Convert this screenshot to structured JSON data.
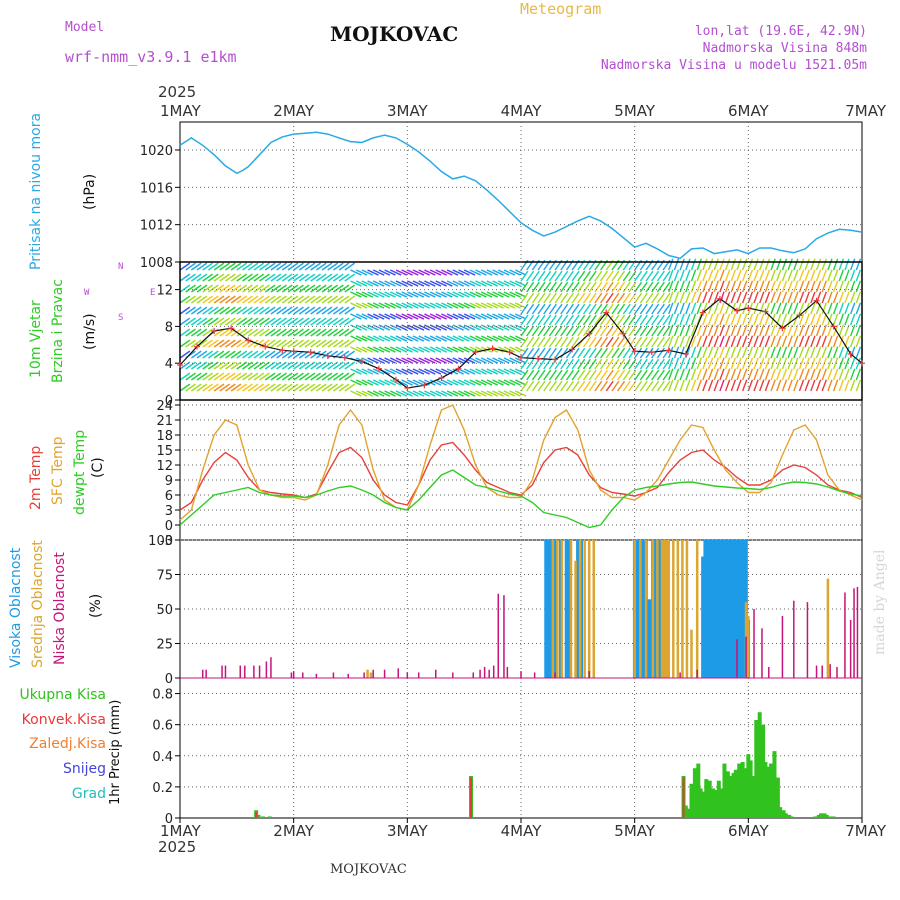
{
  "header": {
    "model_label": "Model",
    "model_value": "wrf-nmm_v3.9.1 e1km",
    "station": "MOJKOVAC",
    "product": "Meteogram",
    "lonlat": "lon,lat (19.6E, 42.9N)",
    "elevation": "Nadmorska Visina 848m",
    "model_elevation": "Nadmorska Visina u modelu 1521.05m"
  },
  "date_axis": {
    "year": "2025",
    "days": [
      "1MAY",
      "2MAY",
      "3MAY",
      "4MAY",
      "5MAY",
      "6MAY",
      "7MAY"
    ]
  },
  "footer": {
    "station": "MOJKOVAC",
    "credit": "made by Angel"
  },
  "panels": {
    "pressure": {
      "label": "Pritisak na nivou mora",
      "unit": "(hPa)"
    },
    "wind": {
      "label1": "10m Vjetar",
      "label2": "Brzina i Pravac",
      "unit": "(m/s)",
      "compass": {
        "w": "W",
        "e": "E",
        "n": "N",
        "s": "S"
      }
    },
    "temp": {
      "label1": "2m Temp",
      "label2": "SFC Temp",
      "label3": "dewpt Temp",
      "unit": "(C)"
    },
    "cloud": {
      "label1": "Visoka Oblacnost",
      "label2": "Srednja Oblacnost",
      "label3": "Niska Oblacnost",
      "unit": "(%)"
    },
    "precip": {
      "legend": [
        "Ukupna Kisa",
        "Konvek.Kisa",
        "Zaledj.Kisa",
        "Snijeg",
        "Grad"
      ],
      "unit": "1hr Precip (mm)"
    }
  },
  "colors": {
    "pressure": "#29a9e6",
    "temp2m": "#e8413a",
    "sfc": "#e4a22e",
    "dewpt": "#2ecc24",
    "high_cloud": "#1e9be6",
    "mid_cloud": "#dca531",
    "low_cloud": "#c4147a",
    "rain": "#31c21e",
    "conv": "#e83a3a",
    "frz": "#ef7f30",
    "snow": "#4444dd",
    "hail": "#22bbbb"
  },
  "chart_data": [
    {
      "type": "line",
      "name": "pressure",
      "x_unit": "days since 1MAY",
      "xlim": [
        0,
        6
      ],
      "ylim": [
        1008,
        1023
      ],
      "yticks": [
        1008,
        1012,
        1016,
        1020
      ],
      "grid": true,
      "x": [
        0,
        0.1,
        0.2,
        0.3,
        0.4,
        0.5,
        0.55,
        0.6,
        0.7,
        0.8,
        0.9,
        1.0,
        1.1,
        1.2,
        1.3,
        1.4,
        1.5,
        1.6,
        1.7,
        1.8,
        1.9,
        2.0,
        2.1,
        2.2,
        2.3,
        2.4,
        2.5,
        2.6,
        2.7,
        2.8,
        2.9,
        3.0,
        3.1,
        3.2,
        3.3,
        3.4,
        3.5,
        3.6,
        3.7,
        3.8,
        3.9,
        4.0,
        4.1,
        4.2,
        4.3,
        4.4,
        4.5,
        4.6,
        4.7,
        4.8,
        4.9,
        5.0,
        5.1,
        5.2,
        5.3,
        5.4,
        5.5,
        5.6,
        5.7,
        5.8,
        5.9,
        6.0
      ],
      "values": [
        1020.5,
        1021.3,
        1020.5,
        1019.5,
        1018.3,
        1017.5,
        1017.8,
        1018.2,
        1019.5,
        1020.8,
        1021.4,
        1021.7,
        1021.8,
        1021.9,
        1021.7,
        1021.3,
        1020.9,
        1020.8,
        1021.3,
        1021.6,
        1021.3,
        1020.6,
        1019.8,
        1018.8,
        1017.7,
        1016.9,
        1017.2,
        1016.7,
        1015.7,
        1014.6,
        1013.4,
        1012.2,
        1011.4,
        1010.8,
        1011.2,
        1011.8,
        1012.4,
        1012.9,
        1012.4,
        1011.6,
        1010.6,
        1009.6,
        1010.0,
        1009.4,
        1008.7,
        1008.4,
        1009.4,
        1009.5,
        1008.9,
        1009.1,
        1009.3,
        1008.9,
        1009.5,
        1009.5,
        1009.2,
        1009.0,
        1009.4,
        1010.5,
        1011.1,
        1011.5,
        1011.4,
        1011.2
      ]
    },
    {
      "type": "line",
      "name": "wind_speed",
      "x_unit": "days since 1MAY",
      "xlim": [
        0,
        6
      ],
      "ylim": [
        0,
        15
      ],
      "yticks": [
        0,
        4,
        8,
        12
      ],
      "grid": true,
      "x": [
        0,
        0.15,
        0.3,
        0.45,
        0.6,
        0.75,
        0.9,
        1.0,
        1.15,
        1.3,
        1.45,
        1.6,
        1.75,
        1.9,
        2.0,
        2.15,
        2.3,
        2.45,
        2.6,
        2.75,
        2.9,
        3.0,
        3.15,
        3.3,
        3.45,
        3.6,
        3.75,
        3.9,
        4.0,
        4.15,
        4.3,
        4.45,
        4.6,
        4.75,
        4.9,
        5.0,
        5.15,
        5.3,
        5.45,
        5.6,
        5.75,
        5.9,
        6.0
      ],
      "values": [
        3.8,
        5.8,
        7.5,
        7.8,
        6.5,
        5.8,
        5.4,
        5.3,
        5.2,
        4.8,
        4.6,
        4.2,
        3.4,
        2.2,
        1.3,
        1.6,
        2.4,
        3.4,
        5.2,
        5.6,
        5.2,
        4.6,
        4.5,
        4.4,
        5.5,
        7.2,
        9.5,
        7.2,
        5.3,
        5.2,
        5.4,
        5.0,
        9.5,
        11.0,
        9.7,
        10.0,
        9.6,
        7.8,
        9.2,
        10.8,
        8.0,
        5.0,
        4.0
      ]
    },
    {
      "type": "line",
      "name": "temperature",
      "x_unit": "days since 1MAY",
      "xlim": [
        0,
        6
      ],
      "ylim": [
        -3,
        25
      ],
      "yticks": [
        -3,
        0,
        3,
        6,
        9,
        12,
        15,
        18,
        21,
        24
      ],
      "grid": true,
      "x": [
        0,
        0.1,
        0.2,
        0.3,
        0.4,
        0.5,
        0.6,
        0.7,
        0.8,
        0.9,
        1.0,
        1.1,
        1.2,
        1.3,
        1.4,
        1.5,
        1.6,
        1.7,
        1.8,
        1.9,
        2.0,
        2.1,
        2.2,
        2.3,
        2.4,
        2.5,
        2.6,
        2.7,
        2.8,
        2.9,
        3.0,
        3.1,
        3.2,
        3.3,
        3.4,
        3.5,
        3.6,
        3.7,
        3.8,
        3.9,
        4.0,
        4.1,
        4.2,
        4.3,
        4.4,
        4.5,
        4.6,
        4.7,
        4.8,
        4.9,
        5.0,
        5.1,
        5.2,
        5.3,
        5.4,
        5.5,
        5.6,
        5.7,
        5.8,
        5.9,
        6.0
      ],
      "series": [
        {
          "name": "2m Temp",
          "values": [
            3,
            4.5,
            9,
            12.5,
            14.5,
            13,
            9.5,
            7,
            6.5,
            6.2,
            6,
            5.5,
            6.2,
            10.5,
            14.5,
            15.5,
            13.5,
            9,
            6,
            4.5,
            4,
            8,
            13,
            16,
            16.5,
            14,
            11,
            8.5,
            7.5,
            6.5,
            6,
            8,
            12.5,
            15,
            15.5,
            14,
            10,
            7.5,
            6.5,
            6.2,
            5.8,
            6.5,
            7.5,
            10.5,
            13,
            14.5,
            15,
            13,
            11.5,
            9.5,
            8,
            8,
            9,
            11,
            12,
            11.5,
            10,
            8,
            7,
            6.5,
            5.5
          ]
        },
        {
          "name": "SFC Temp",
          "values": [
            1,
            3,
            11,
            18,
            21,
            20,
            12,
            7,
            6,
            5.5,
            5.5,
            5,
            6,
            12,
            20,
            23,
            20,
            11,
            5,
            3.5,
            3,
            8,
            16,
            23,
            24,
            19,
            12,
            7.5,
            6,
            5.5,
            5.5,
            9,
            17,
            21.5,
            23,
            19,
            11,
            7,
            5.5,
            5.5,
            5,
            6.5,
            9,
            13,
            17,
            20,
            19.5,
            15,
            11,
            8.5,
            6.5,
            6.5,
            8.5,
            14,
            19,
            20,
            17,
            10,
            7,
            6,
            5
          ]
        },
        {
          "name": "dewpt Temp",
          "values": [
            0,
            2,
            4,
            6,
            6.5,
            7,
            7.5,
            6.5,
            6,
            5.8,
            5.8,
            5.5,
            6,
            6.8,
            7.5,
            7.8,
            7,
            6,
            4.5,
            3.5,
            3,
            5,
            7.5,
            10,
            11,
            9.5,
            8,
            7.5,
            6.8,
            6.2,
            5.8,
            4.5,
            2.5,
            2,
            1.5,
            0.5,
            -0.5,
            0,
            3,
            5.5,
            7,
            7.5,
            7.8,
            8.2,
            8.5,
            8.6,
            8.2,
            7.8,
            7.6,
            7.4,
            7.3,
            7.1,
            7.5,
            8.2,
            8.6,
            8.5,
            8.2,
            7.6,
            6.8,
            6.2,
            5.8
          ]
        }
      ]
    },
    {
      "type": "bar",
      "name": "cloud_cover",
      "x_unit": "days since 1MAY",
      "xlim": [
        0,
        6
      ],
      "ylim": [
        0,
        100
      ],
      "yticks": [
        0,
        25,
        50,
        75,
        100
      ],
      "grid": true,
      "series": [
        {
          "name": "Visoka Oblacnost",
          "x": [
            3.22,
            3.24,
            3.26,
            3.28,
            3.3,
            3.35,
            3.4,
            3.42,
            3.5,
            3.53,
            4.0,
            4.02,
            4.04,
            4.06,
            4.08,
            4.1,
            4.12,
            4.14,
            4.16,
            4.18,
            4.2,
            4.22,
            4.24,
            4.28,
            4.6,
            4.62,
            4.64,
            4.66,
            4.68,
            4.7,
            4.72,
            4.74,
            4.76,
            4.78,
            4.8,
            4.82,
            4.84,
            4.86,
            4.88,
            4.9,
            4.92,
            4.94,
            4.96,
            4.98,
            5.0
          ],
          "values": [
            100,
            100,
            100,
            100,
            100,
            100,
            100,
            100,
            100,
            100,
            100,
            100,
            100,
            100,
            100,
            100,
            57,
            57,
            100,
            100,
            100,
            100,
            100,
            100,
            88,
            100,
            100,
            100,
            100,
            100,
            100,
            100,
            100,
            100,
            100,
            100,
            100,
            100,
            100,
            100,
            100,
            100,
            100,
            100,
            42
          ]
        },
        {
          "name": "Srednja Oblacnost",
          "x": [
            1.65,
            1.68,
            3.28,
            3.32,
            3.36,
            3.44,
            3.48,
            3.52,
            3.56,
            3.6,
            3.64,
            4.0,
            4.05,
            4.1,
            4.16,
            4.2,
            4.24,
            4.26,
            4.28,
            4.3,
            4.34,
            4.38,
            4.42,
            4.46,
            4.5,
            4.55,
            4.98,
            5.0,
            5.7
          ],
          "values": [
            6,
            4,
            100,
            100,
            100,
            100,
            85,
            100,
            100,
            100,
            100,
            100,
            100,
            100,
            100,
            100,
            100,
            100,
            100,
            100,
            100,
            100,
            100,
            100,
            35,
            100,
            55,
            45,
            72
          ]
        },
        {
          "name": "Niska Oblacnost",
          "x": [
            0.2,
            0.23,
            0.37,
            0.4,
            0.53,
            0.57,
            0.65,
            0.7,
            0.76,
            0.8,
            0.98,
            1.0,
            1.08,
            1.2,
            1.35,
            1.48,
            1.62,
            1.7,
            1.8,
            1.92,
            2.0,
            2.1,
            2.25,
            2.4,
            2.58,
            2.64,
            2.68,
            2.72,
            2.76,
            2.8,
            2.85,
            2.88,
            3.0,
            3.12,
            3.3,
            3.6,
            4.4,
            4.55,
            4.9,
            4.98,
            5.05,
            5.12,
            5.18,
            5.3,
            5.4,
            5.52,
            5.6,
            5.65,
            5.72,
            5.78,
            5.85,
            5.9,
            5.93,
            5.96
          ],
          "values": [
            6,
            6,
            9,
            9,
            9,
            9,
            9,
            9,
            12,
            15,
            4,
            5,
            4,
            3,
            4,
            3,
            4,
            6,
            6,
            7,
            4,
            4,
            6,
            4,
            4,
            6,
            8,
            6,
            9,
            61,
            60,
            8,
            5,
            4,
            4,
            5,
            4,
            6,
            28,
            30,
            50,
            36,
            8,
            45,
            56,
            55,
            9,
            9,
            10,
            8,
            62,
            42,
            65,
            66
          ]
        }
      ]
    },
    {
      "type": "bar",
      "name": "precipitation",
      "x_unit": "days since 1MAY",
      "xlim": [
        0,
        6
      ],
      "ylim": [
        0,
        0.9
      ],
      "yticks": [
        0,
        0.2,
        0.4,
        0.6,
        0.8
      ],
      "grid": true,
      "series": [
        {
          "name": "Ukupna Kisa",
          "x": [
            0.67,
            0.69,
            0.73,
            0.79,
            2.56,
            4.43,
            4.45,
            4.48,
            4.5,
            4.53,
            4.56,
            4.58,
            4.61,
            4.63,
            4.66,
            4.69,
            4.71,
            4.74,
            4.76,
            4.79,
            4.82,
            4.84,
            4.87,
            4.89,
            4.92,
            4.95,
            4.97,
            5.0,
            5.02,
            5.05,
            5.07,
            5.1,
            5.13,
            5.15,
            5.18,
            5.2,
            5.23,
            5.26,
            5.28,
            5.31,
            5.33,
            5.36,
            5.38,
            5.41,
            5.44,
            5.46,
            5.49,
            5.51,
            5.54,
            5.57,
            5.59,
            5.62,
            5.64,
            5.67,
            5.69,
            5.72,
            5.75,
            5.77,
            5.8,
            5.82,
            5.85,
            5.88,
            5.9,
            5.93,
            5.95,
            5.98
          ],
          "values": [
            0.05,
            0.02,
            0.01,
            0.01,
            0.27,
            0.27,
            0.08,
            0.06,
            0.22,
            0.32,
            0.35,
            0.19,
            0.17,
            0.25,
            0.24,
            0.19,
            0.18,
            0.24,
            0.19,
            0.35,
            0.3,
            0.27,
            0.29,
            0.31,
            0.35,
            0.36,
            0.32,
            0.41,
            0.37,
            0.27,
            0.63,
            0.68,
            0.6,
            0.36,
            0.33,
            0.35,
            0.43,
            0.26,
            0.07,
            0.05,
            0.03,
            0.02,
            0.01,
            0.0,
            0.0,
            0.0,
            0.0,
            0.0,
            0.0,
            0.0,
            0.01,
            0.02,
            0.03,
            0.03,
            0.02,
            0.01,
            0.01,
            0.0,
            0.0,
            0.0,
            0.0,
            0.0,
            0.0,
            0.0,
            0.0,
            0.0
          ]
        },
        {
          "name": "Konvek.Kisa",
          "x": [
            0.67,
            2.56,
            4.43
          ],
          "values": [
            0.04,
            0.26,
            0.26
          ]
        }
      ]
    }
  ]
}
